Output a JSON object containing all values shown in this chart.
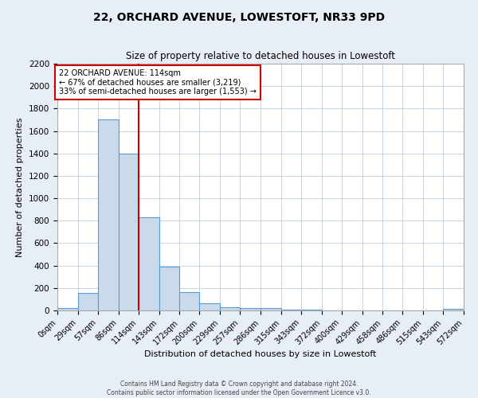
{
  "title": "22, ORCHARD AVENUE, LOWESTOFT, NR33 9PD",
  "subtitle": "Size of property relative to detached houses in Lowestoft",
  "xlabel": "Distribution of detached houses by size in Lowestoft",
  "ylabel": "Number of detached properties",
  "bin_edges": [
    0,
    29,
    57,
    86,
    114,
    143,
    172,
    200,
    229,
    257,
    286,
    315,
    343,
    372,
    400,
    429,
    458,
    486,
    515,
    543,
    572
  ],
  "bar_heights": [
    20,
    155,
    1700,
    1400,
    830,
    390,
    165,
    65,
    30,
    20,
    20,
    5,
    5,
    0,
    0,
    0,
    0,
    0,
    0,
    15
  ],
  "bar_color": "#c9daea",
  "bar_edge_color": "#5b9bd5",
  "vline_x": 114,
  "vline_color": "#cc0000",
  "annotation_title": "22 ORCHARD AVENUE: 114sqm",
  "annotation_line1": "← 67% of detached houses are smaller (3,219)",
  "annotation_line2": "33% of semi-detached houses are larger (1,553) →",
  "annotation_box_edge": "#cc0000",
  "annotation_box_bg": "white",
  "ylim": [
    0,
    2200
  ],
  "yticks": [
    0,
    200,
    400,
    600,
    800,
    1000,
    1200,
    1400,
    1600,
    1800,
    2000,
    2200
  ],
  "footer1": "Contains HM Land Registry data © Crown copyright and database right 2024.",
  "footer2": "Contains public sector information licensed under the Open Government Licence v3.0.",
  "bg_color": "#e8eef5",
  "plot_bg_color": "white"
}
